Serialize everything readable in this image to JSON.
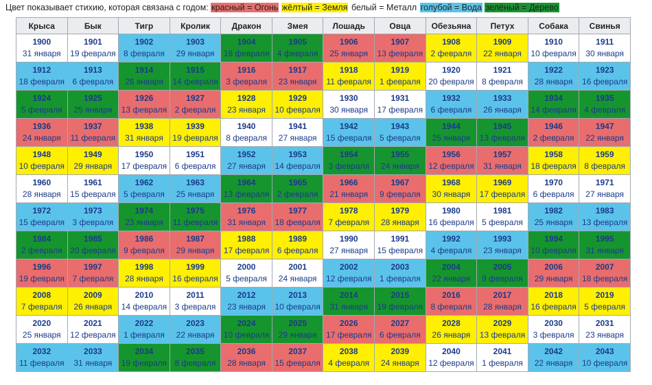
{
  "legend": {
    "prefix": "Цвет показывает стихию, которая связана с годом:",
    "items": [
      {
        "text": "красный = Огонь",
        "color": "#e96d6d"
      },
      {
        "text": "жёлтый = Земля",
        "color": "#ffef00"
      },
      {
        "text": "белый = Металл",
        "color": "#ffffff"
      },
      {
        "text": "голубой = Вода",
        "color": "#5bc3ea"
      },
      {
        "text": "зелёный = Дерево",
        "color": "#16952e"
      }
    ]
  },
  "colors": {
    "R": "#e96d6d",
    "Y": "#ffef00",
    "W": "#ffffff",
    "B": "#5bc3ea",
    "G": "#16952e"
  },
  "headers": [
    "Крыса",
    "Бык",
    "Тигр",
    "Кролик",
    "Дракон",
    "Змея",
    "Лошадь",
    "Овца",
    "Обезьяна",
    "Петух",
    "Собака",
    "Свинья"
  ],
  "rows": [
    {
      "elem": [
        "W",
        "W",
        "B",
        "B",
        "G",
        "G",
        "R",
        "R",
        "Y",
        "Y",
        "W",
        "W"
      ],
      "cells": [
        [
          "1900",
          "31 января"
        ],
        [
          "1901",
          "19 февраля"
        ],
        [
          "1902",
          "8 февраля"
        ],
        [
          "1903",
          "29 января"
        ],
        [
          "1904",
          "16 февраля"
        ],
        [
          "1905",
          "4 февраля"
        ],
        [
          "1906",
          "25 января"
        ],
        [
          "1907",
          "13 февраля"
        ],
        [
          "1908",
          "2 февраля"
        ],
        [
          "1909",
          "22 января"
        ],
        [
          "1910",
          "10 февраля"
        ],
        [
          "1911",
          "30 января"
        ]
      ]
    },
    {
      "elem": [
        "B",
        "B",
        "G",
        "G",
        "R",
        "R",
        "Y",
        "Y",
        "W",
        "W",
        "B",
        "B"
      ],
      "cells": [
        [
          "1912",
          "18 февраля"
        ],
        [
          "1913",
          "6 февраля"
        ],
        [
          "1914",
          "26 января"
        ],
        [
          "1915",
          "14 февраля"
        ],
        [
          "1916",
          "3 февраля"
        ],
        [
          "1917",
          "23 января"
        ],
        [
          "1918",
          "11 февраля"
        ],
        [
          "1919",
          "1 февраля"
        ],
        [
          "1920",
          "20 февраля"
        ],
        [
          "1921",
          "8 февраля"
        ],
        [
          "1922",
          "28 января"
        ],
        [
          "1923",
          "16 февраля"
        ]
      ]
    },
    {
      "elem": [
        "G",
        "G",
        "R",
        "R",
        "Y",
        "Y",
        "W",
        "W",
        "B",
        "B",
        "G",
        "G"
      ],
      "cells": [
        [
          "1924",
          "5 февраля"
        ],
        [
          "1925",
          "25 января"
        ],
        [
          "1926",
          "13 февраля"
        ],
        [
          "1927",
          "2 февраля"
        ],
        [
          "1928",
          "23 января"
        ],
        [
          "1929",
          "10 февраля"
        ],
        [
          "1930",
          "30 января"
        ],
        [
          "1931",
          "17 февраля"
        ],
        [
          "1932",
          "6 февраля"
        ],
        [
          "1933",
          "26 января"
        ],
        [
          "1934",
          "14 февраля"
        ],
        [
          "1935",
          "4 февраля"
        ]
      ]
    },
    {
      "elem": [
        "R",
        "R",
        "Y",
        "Y",
        "W",
        "W",
        "B",
        "B",
        "G",
        "G",
        "R",
        "R"
      ],
      "cells": [
        [
          "1936",
          "24 января"
        ],
        [
          "1937",
          "11 февраля"
        ],
        [
          "1938",
          "31 января"
        ],
        [
          "1939",
          "19 февраля"
        ],
        [
          "1940",
          "8 февраля"
        ],
        [
          "1941",
          "27 января"
        ],
        [
          "1942",
          "15 февраля"
        ],
        [
          "1943",
          "5 февраля"
        ],
        [
          "1944",
          "25 января"
        ],
        [
          "1945",
          "13 февраля"
        ],
        [
          "1946",
          "2 февраля"
        ],
        [
          "1947",
          "22 января"
        ]
      ]
    },
    {
      "elem": [
        "Y",
        "Y",
        "W",
        "W",
        "B",
        "B",
        "G",
        "G",
        "R",
        "R",
        "Y",
        "Y"
      ],
      "cells": [
        [
          "1948",
          "10 февраля"
        ],
        [
          "1949",
          "29 января"
        ],
        [
          "1950",
          "17 февраля"
        ],
        [
          "1951",
          "6 февраля"
        ],
        [
          "1952",
          "27 января"
        ],
        [
          "1953",
          "14 февраля"
        ],
        [
          "1954",
          "3 февраля"
        ],
        [
          "1955",
          "24 января"
        ],
        [
          "1956",
          "12 февраля"
        ],
        [
          "1957",
          "31 января"
        ],
        [
          "1958",
          "18 февраля"
        ],
        [
          "1959",
          "8 февраля"
        ]
      ]
    },
    {
      "elem": [
        "W",
        "W",
        "B",
        "B",
        "G",
        "G",
        "R",
        "R",
        "Y",
        "Y",
        "W",
        "W"
      ],
      "cells": [
        [
          "1960",
          "28 января"
        ],
        [
          "1961",
          "15 февраля"
        ],
        [
          "1962",
          "5 февраля"
        ],
        [
          "1963",
          "25 января"
        ],
        [
          "1964",
          "13 февраля"
        ],
        [
          "1965",
          "2 февраля"
        ],
        [
          "1966",
          "21 января"
        ],
        [
          "1967",
          "9 февраля"
        ],
        [
          "1968",
          "30 января"
        ],
        [
          "1969",
          "17 февраля"
        ],
        [
          "1970",
          "6 февраля"
        ],
        [
          "1971",
          "27 января"
        ]
      ]
    },
    {
      "elem": [
        "B",
        "B",
        "G",
        "G",
        "R",
        "R",
        "Y",
        "Y",
        "W",
        "W",
        "B",
        "B"
      ],
      "cells": [
        [
          "1972",
          "15 февраля"
        ],
        [
          "1973",
          "3 февраля"
        ],
        [
          "1974",
          "23 января"
        ],
        [
          "1975",
          "11 февраля"
        ],
        [
          "1976",
          "31 января"
        ],
        [
          "1977",
          "18 февраля"
        ],
        [
          "1978",
          "7 февраля"
        ],
        [
          "1979",
          "28 января"
        ],
        [
          "1980",
          "16 февраля"
        ],
        [
          "1981",
          "5 февраля"
        ],
        [
          "1982",
          "25 января"
        ],
        [
          "1983",
          "13 февраля"
        ]
      ]
    },
    {
      "elem": [
        "G",
        "G",
        "R",
        "R",
        "Y",
        "Y",
        "W",
        "W",
        "B",
        "B",
        "G",
        "G"
      ],
      "cells": [
        [
          "1984",
          "2 февраля"
        ],
        [
          "1985",
          "20 февраля"
        ],
        [
          "1986",
          "9 февраля"
        ],
        [
          "1987",
          "29 января"
        ],
        [
          "1988",
          "17 февраля"
        ],
        [
          "1989",
          "6 февраля"
        ],
        [
          "1990",
          "27 января"
        ],
        [
          "1991",
          "15 февраля"
        ],
        [
          "1992",
          "4 февраля"
        ],
        [
          "1993",
          "23 января"
        ],
        [
          "1994",
          "10 февраля"
        ],
        [
          "1995",
          "31 января"
        ]
      ]
    },
    {
      "elem": [
        "R",
        "R",
        "Y",
        "Y",
        "W",
        "W",
        "B",
        "B",
        "G",
        "G",
        "R",
        "R"
      ],
      "cells": [
        [
          "1996",
          "19 февраля"
        ],
        [
          "1997",
          "7 февраля"
        ],
        [
          "1998",
          "28 января"
        ],
        [
          "1999",
          "16 февраля"
        ],
        [
          "2000",
          "5 февраля"
        ],
        [
          "2001",
          "24 января"
        ],
        [
          "2002",
          "12 февраля"
        ],
        [
          "2003",
          "1 февраля"
        ],
        [
          "2004",
          "22 января"
        ],
        [
          "2005",
          "9 февраля"
        ],
        [
          "2006",
          "29 января"
        ],
        [
          "2007",
          "18 февраля"
        ]
      ]
    },
    {
      "elem": [
        "Y",
        "Y",
        "W",
        "W",
        "B",
        "B",
        "G",
        "G",
        "R",
        "R",
        "Y",
        "Y"
      ],
      "cells": [
        [
          "2008",
          "7 февраля"
        ],
        [
          "2009",
          "26 января"
        ],
        [
          "2010",
          "14 февраля"
        ],
        [
          "2011",
          "3 февраля"
        ],
        [
          "2012",
          "23 января"
        ],
        [
          "2013",
          "10 февраля"
        ],
        [
          "2014",
          "31 января"
        ],
        [
          "2015",
          "19 февраля"
        ],
        [
          "2016",
          "8 февраля"
        ],
        [
          "2017",
          "28 января"
        ],
        [
          "2018",
          "16 февраля"
        ],
        [
          "2019",
          "5 февраля"
        ]
      ]
    },
    {
      "elem": [
        "W",
        "W",
        "B",
        "B",
        "G",
        "G",
        "R",
        "R",
        "Y",
        "Y",
        "W",
        "W"
      ],
      "cells": [
        [
          "2020",
          "25 января"
        ],
        [
          "2021",
          "12 февраля"
        ],
        [
          "2022",
          "1 февраля"
        ],
        [
          "2023",
          "22 января"
        ],
        [
          "2024",
          "10 февраля"
        ],
        [
          "2025",
          "29 января"
        ],
        [
          "2026",
          "17 февраля"
        ],
        [
          "2027",
          "6 февраля"
        ],
        [
          "2028",
          "26 января"
        ],
        [
          "2029",
          "13 февраля"
        ],
        [
          "2030",
          "3 февраля"
        ],
        [
          "2031",
          "23 января"
        ]
      ]
    },
    {
      "elem": [
        "B",
        "B",
        "G",
        "G",
        "R",
        "R",
        "Y",
        "Y",
        "W",
        "W",
        "B",
        "B"
      ],
      "cells": [
        [
          "2032",
          "11 февраля"
        ],
        [
          "2033",
          "31 января"
        ],
        [
          "2034",
          "19 февраля"
        ],
        [
          "2035",
          "8 февраля"
        ],
        [
          "2036",
          "28 января"
        ],
        [
          "2037",
          "15 февраля"
        ],
        [
          "2038",
          "4 февраля"
        ],
        [
          "2039",
          "24 января"
        ],
        [
          "2040",
          "12 февраля"
        ],
        [
          "2041",
          "1 февраля"
        ],
        [
          "2042",
          "22 января"
        ],
        [
          "2043",
          "10 февраля"
        ]
      ]
    }
  ]
}
